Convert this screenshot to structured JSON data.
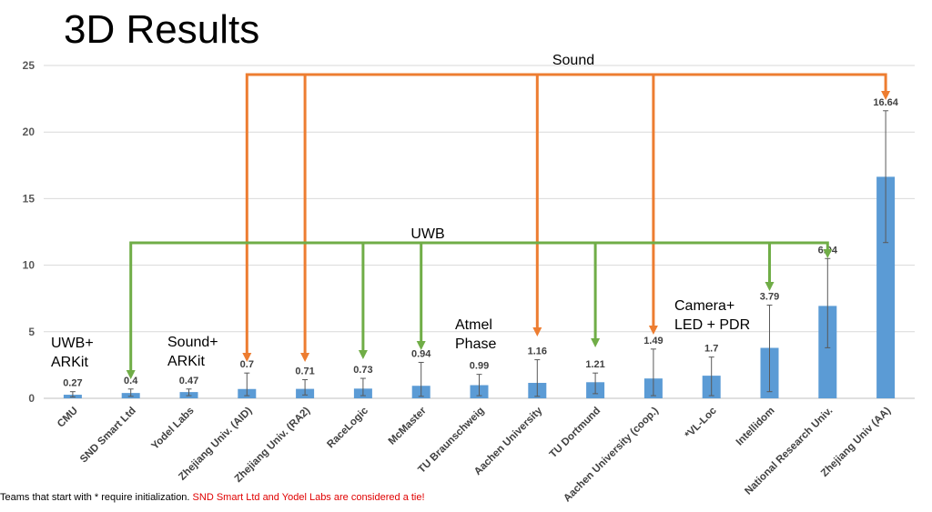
{
  "title": "3D Results",
  "chart_data": {
    "type": "bar",
    "categories": [
      "CMU",
      "SND Smart Ltd",
      "Yodel Labs",
      "Zhejiang Univ. (AID)",
      "Zhejiang Univ. (RA2)",
      "RaceLogic",
      "McMaster",
      "TU Braunschweig",
      "Aachen University",
      "TU Dortmund",
      "Aachen University (coop.)",
      "*VL-Loc",
      "Intellidom",
      "National Research Univ.",
      "Zhejiang Univ (AA)"
    ],
    "values": [
      0.27,
      0.4,
      0.47,
      0.7,
      0.71,
      0.73,
      0.94,
      0.99,
      1.16,
      1.21,
      1.49,
      1.7,
      3.79,
      6.94,
      16.64
    ],
    "labels": [
      "0.27",
      "0.4",
      "0.47",
      "0.7",
      "0.71",
      "0.73",
      "0.94",
      "0.99",
      "1.16",
      "1.21",
      "1.49",
      "1.7",
      "3.79",
      "6.94",
      "16.64"
    ],
    "error_low": [
      0.1,
      0.15,
      0.2,
      0.2,
      0.25,
      0.2,
      0.15,
      0.2,
      0.15,
      0.35,
      0.2,
      0.2,
      0.5,
      3.8,
      11.7
    ],
    "error_high": [
      0.5,
      0.7,
      0.7,
      1.9,
      1.4,
      1.5,
      2.7,
      1.8,
      2.9,
      1.9,
      3.7,
      3.1,
      7.0,
      10.5,
      21.6
    ],
    "ylim": [
      0,
      25
    ],
    "yticks": [
      0,
      5,
      10,
      15,
      20,
      25
    ],
    "bar_color": "#5b9bd5",
    "gridlines": true,
    "annotations": {
      "sound_label": "Sound",
      "uwb_label": "UWB",
      "sound_color": "#ed7d31",
      "uwb_color": "#70ad47",
      "sound_targets": [
        3,
        4,
        8,
        10,
        14
      ],
      "uwb_targets": [
        1,
        5,
        6,
        9,
        12,
        13
      ],
      "notes": [
        {
          "lines": [
            "UWB+",
            "ARKit"
          ]
        },
        {
          "lines": [
            "Sound+",
            "ARKit"
          ]
        },
        {
          "lines": [
            "Atmel",
            "Phase"
          ]
        },
        {
          "lines": [
            "Camera+",
            "LED + PDR"
          ]
        }
      ]
    }
  },
  "footnote": {
    "black": "Teams that start with * require initialization.",
    "red": "SND Smart Ltd and Yodel Labs are considered a tie!"
  }
}
